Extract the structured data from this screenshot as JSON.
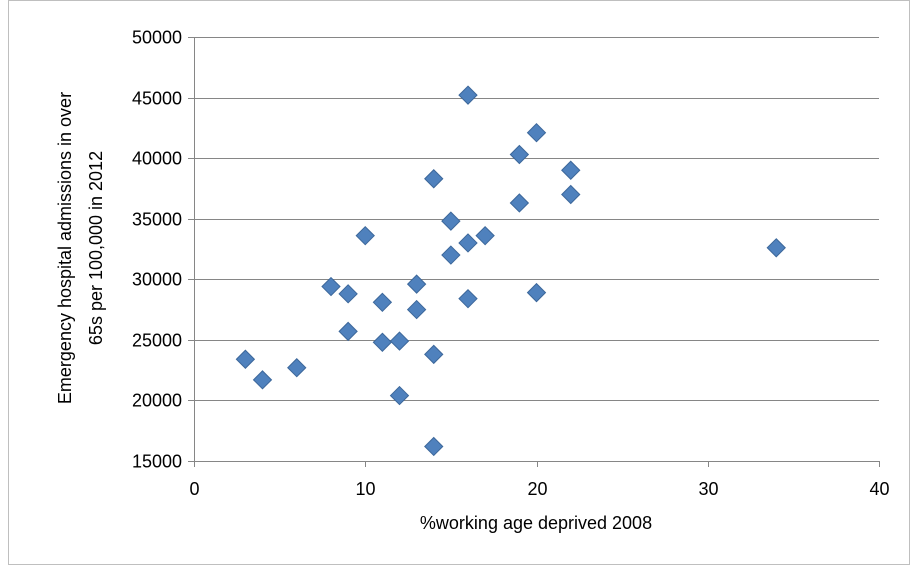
{
  "chart_data": {
    "type": "scatter",
    "title": "",
    "xlabel": "%working age deprived 2008",
    "ylabel_lines": [
      "Emergency hospital admissions in over",
      "65s per 100,000 in 2012"
    ],
    "xlim": [
      0,
      40
    ],
    "ylim": [
      15000,
      50000
    ],
    "x_ticks": [
      0,
      10,
      20,
      30,
      40
    ],
    "y_ticks": [
      15000,
      20000,
      25000,
      30000,
      35000,
      40000,
      45000,
      50000
    ],
    "grid": "horizontal",
    "legend": "none",
    "marker": "diamond",
    "colors": {
      "marker_fill": "#4f81bd",
      "marker_edge": "#3c679a",
      "grid": "#868686",
      "axis": "#868686",
      "border": "#bfbfbf"
    },
    "points": [
      {
        "x": 3,
        "y": 23400
      },
      {
        "x": 4,
        "y": 21700
      },
      {
        "x": 6,
        "y": 22700
      },
      {
        "x": 8,
        "y": 29400
      },
      {
        "x": 9,
        "y": 28800
      },
      {
        "x": 9,
        "y": 25700
      },
      {
        "x": 10,
        "y": 33600
      },
      {
        "x": 11,
        "y": 28100
      },
      {
        "x": 11,
        "y": 24800
      },
      {
        "x": 12,
        "y": 24900
      },
      {
        "x": 12,
        "y": 20400
      },
      {
        "x": 13,
        "y": 29600
      },
      {
        "x": 13,
        "y": 27500
      },
      {
        "x": 14,
        "y": 38300
      },
      {
        "x": 14,
        "y": 23800
      },
      {
        "x": 14,
        "y": 16200
      },
      {
        "x": 15,
        "y": 34800
      },
      {
        "x": 15,
        "y": 32000
      },
      {
        "x": 16,
        "y": 45200
      },
      {
        "x": 16,
        "y": 33000
      },
      {
        "x": 16,
        "y": 28400
      },
      {
        "x": 17,
        "y": 33600
      },
      {
        "x": 19,
        "y": 40300
      },
      {
        "x": 19,
        "y": 36300
      },
      {
        "x": 20,
        "y": 42100
      },
      {
        "x": 20,
        "y": 28900
      },
      {
        "x": 22,
        "y": 39000
      },
      {
        "x": 22,
        "y": 37000
      },
      {
        "x": 34,
        "y": 32600
      }
    ]
  }
}
